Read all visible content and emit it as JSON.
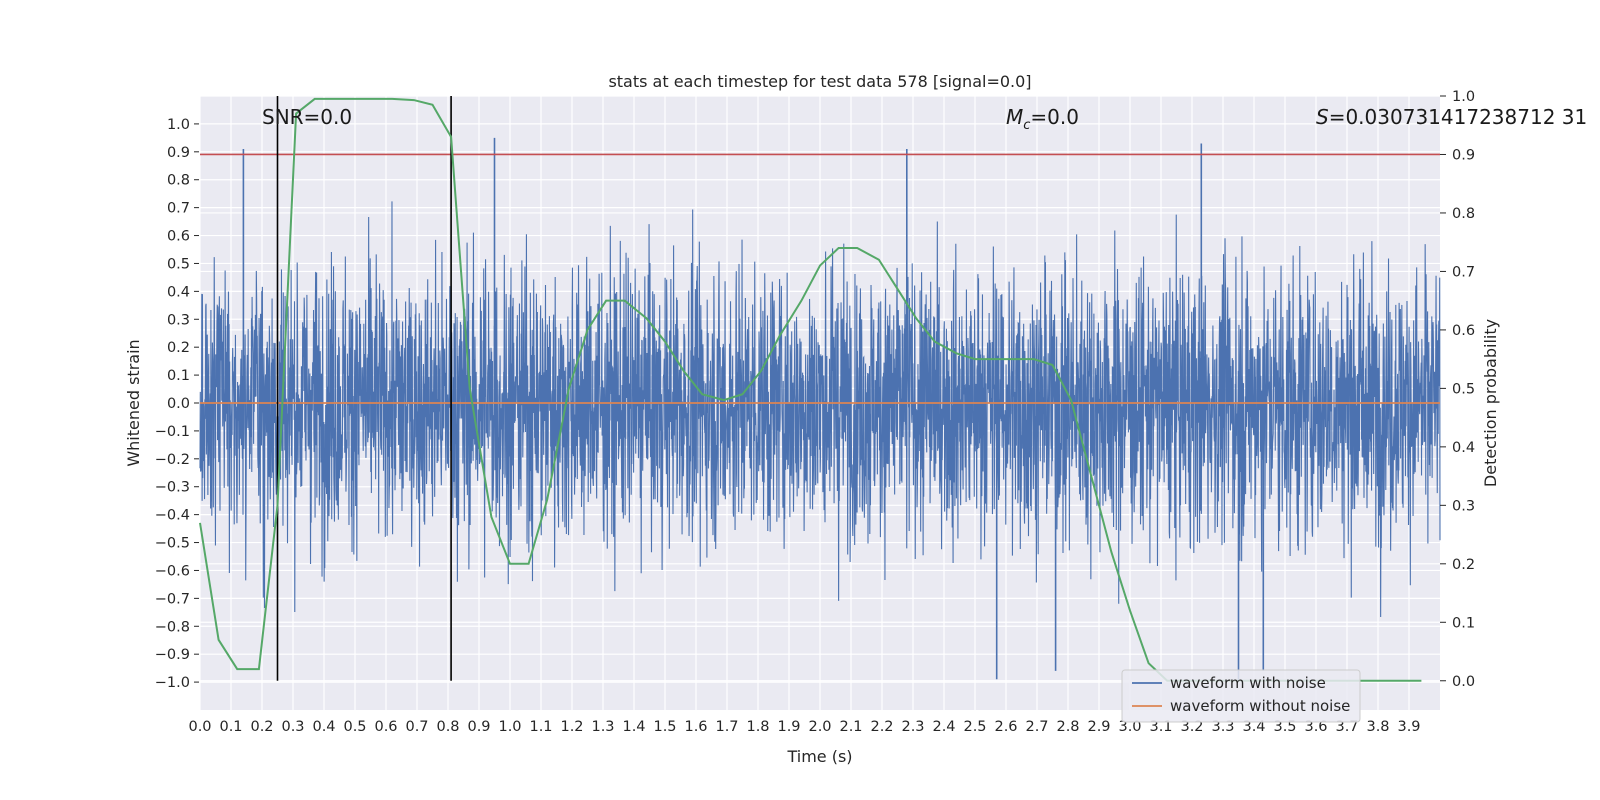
{
  "chart_data": {
    "type": "line",
    "title": "stats at each timestep for test data 578 [signal=0.0]",
    "xlabel": "Time (s)",
    "ylabel": "Whitened strain",
    "ylabel_right": "Detection probability",
    "xlim": [
      0.0,
      4.0
    ],
    "ylim": [
      -1.1,
      1.1
    ],
    "ylim_right": [
      -0.05,
      1.0
    ],
    "x_ticks": [
      "0.0",
      "0.1",
      "0.2",
      "0.3",
      "0.4",
      "0.5",
      "0.6",
      "0.7",
      "0.8",
      "0.9",
      "1.0",
      "1.1",
      "1.2",
      "1.3",
      "1.4",
      "1.5",
      "1.6",
      "1.7",
      "1.8",
      "1.9",
      "2.0",
      "2.1",
      "2.2",
      "2.3",
      "2.4",
      "2.5",
      "2.6",
      "2.7",
      "2.8",
      "2.9",
      "3.0",
      "3.1",
      "3.2",
      "3.3",
      "3.4",
      "3.5",
      "3.6",
      "3.7",
      "3.8",
      "3.9"
    ],
    "y_ticks": [
      "1.0",
      "0.9",
      "0.8",
      "0.7",
      "0.6",
      "0.5",
      "0.4",
      "0.3",
      "0.2",
      "0.1",
      "0.0",
      "−0.1",
      "−0.2",
      "−0.3",
      "−0.4",
      "−0.5",
      "−0.6",
      "−0.7",
      "−0.8",
      "−0.9",
      "−1.0"
    ],
    "y_ticks_right": [
      "1.0",
      "0.9",
      "0.8",
      "0.7",
      "0.6",
      "0.5",
      "0.4",
      "0.3",
      "0.2",
      "0.1",
      "0.0"
    ],
    "annotations": {
      "snr": "SNR=0.0",
      "mc_symbol": "M",
      "mc_sub": "c",
      "mc_value": "=0.0",
      "s_symbol": "S",
      "s_value": "=0.030731417238712 31"
    },
    "legend": {
      "position": "bottom-right",
      "entries": [
        {
          "label": "waveform with noise",
          "color": "#4c72b0"
        },
        {
          "label": "waveform without noise",
          "color": "#dd8452"
        }
      ]
    },
    "threshold_line": {
      "y_right": 0.9,
      "color": "#c44e52"
    },
    "vertical_markers": [
      0.25,
      0.81
    ],
    "series": [
      {
        "name": "waveform with noise",
        "axis": "left",
        "color": "#4c72b0",
        "description": "dense noise trace, approx ±0.5 band with spikes to ±0.95",
        "peaks": [
          [
            0.14,
            0.91
          ],
          [
            0.95,
            0.95
          ],
          [
            2.28,
            0.91
          ],
          [
            3.23,
            0.93
          ],
          [
            3.35,
            -1.0
          ],
          [
            2.57,
            -0.99
          ],
          [
            2.76,
            -0.96
          ],
          [
            3.43,
            -0.96
          ]
        ]
      },
      {
        "name": "waveform without noise",
        "axis": "left",
        "color": "#dd8452",
        "x": [
          0.0,
          4.0
        ],
        "y": [
          0.0,
          0.0
        ]
      },
      {
        "name": "Detection probability",
        "axis": "right",
        "color": "#55a868",
        "x": [
          0.0,
          0.06,
          0.12,
          0.19,
          0.25,
          0.31,
          0.37,
          0.44,
          0.5,
          0.56,
          0.62,
          0.69,
          0.75,
          0.81,
          0.87,
          0.94,
          1.0,
          1.06,
          1.12,
          1.19,
          1.25,
          1.31,
          1.37,
          1.44,
          1.5,
          1.56,
          1.62,
          1.69,
          1.75,
          1.81,
          1.87,
          1.94,
          2.0,
          2.06,
          2.12,
          2.19,
          2.25,
          2.31,
          2.37,
          2.44,
          2.5,
          2.56,
          2.62,
          2.69,
          2.75,
          2.81,
          2.87,
          2.94,
          3.0,
          3.06,
          3.12,
          3.19,
          3.25,
          3.31,
          3.37,
          3.44,
          3.5,
          3.56,
          3.62,
          3.69,
          3.75,
          3.81,
          3.87,
          3.94
        ],
        "y": [
          0.27,
          0.07,
          0.02,
          0.02,
          0.3,
          0.97,
          0.995,
          0.995,
          0.995,
          0.995,
          0.995,
          0.993,
          0.985,
          0.93,
          0.5,
          0.28,
          0.2,
          0.2,
          0.31,
          0.5,
          0.6,
          0.65,
          0.65,
          0.62,
          0.58,
          0.53,
          0.49,
          0.48,
          0.49,
          0.53,
          0.59,
          0.65,
          0.71,
          0.74,
          0.74,
          0.72,
          0.67,
          0.62,
          0.58,
          0.56,
          0.55,
          0.55,
          0.55,
          0.55,
          0.54,
          0.48,
          0.36,
          0.22,
          0.12,
          0.03,
          0.0,
          0.0,
          0.0,
          0.0,
          0.0,
          0.0,
          0.0,
          0.0,
          0.0,
          0.0,
          0.0,
          0.0,
          0.0,
          0.0
        ]
      }
    ]
  }
}
